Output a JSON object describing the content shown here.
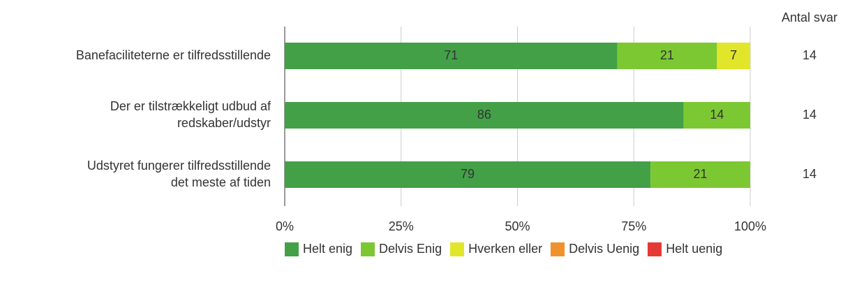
{
  "chart_data": {
    "type": "stacked-barh",
    "categories": [
      "Banefaciliteterne er tilfredsstillende",
      "Der er tilstrækkeligt udbud af\nredskaber/udstyr",
      "Udstyret fungerer tilfredsstillende\ndet meste af tiden"
    ],
    "series": [
      {
        "name": "Helt enig",
        "color": "#43a047",
        "values": [
          71.43,
          85.71,
          78.57
        ],
        "value_labels": [
          "71",
          "86",
          "79"
        ]
      },
      {
        "name": "Delvis Enig",
        "color": "#7cc832",
        "values": [
          21.43,
          14.29,
          21.43
        ],
        "value_labels": [
          "21",
          "14",
          "21"
        ]
      },
      {
        "name": "Hverken eller",
        "color": "#e2e62a",
        "values": [
          7.14,
          0,
          0
        ],
        "value_labels": [
          "7",
          null,
          null
        ]
      },
      {
        "name": "Delvis Uenig",
        "color": "#f0922b",
        "values": [
          0,
          0,
          0
        ],
        "value_labels": [
          null,
          null,
          null
        ]
      },
      {
        "name": "Helt uenig",
        "color": "#e53935",
        "values": [
          0,
          0,
          0
        ],
        "value_labels": [
          null,
          null,
          null
        ]
      }
    ],
    "xlim": [
      0,
      100
    ],
    "xticks": [
      {
        "value": 0,
        "label": "0%"
      },
      {
        "value": 25,
        "label": "25%"
      },
      {
        "value": 50,
        "label": "50%"
      },
      {
        "value": 75,
        "label": "75%"
      },
      {
        "value": 100,
        "label": "100%"
      }
    ],
    "grid": true,
    "counts": {
      "title": "Antal svar",
      "values": [
        14,
        14,
        14
      ]
    }
  }
}
